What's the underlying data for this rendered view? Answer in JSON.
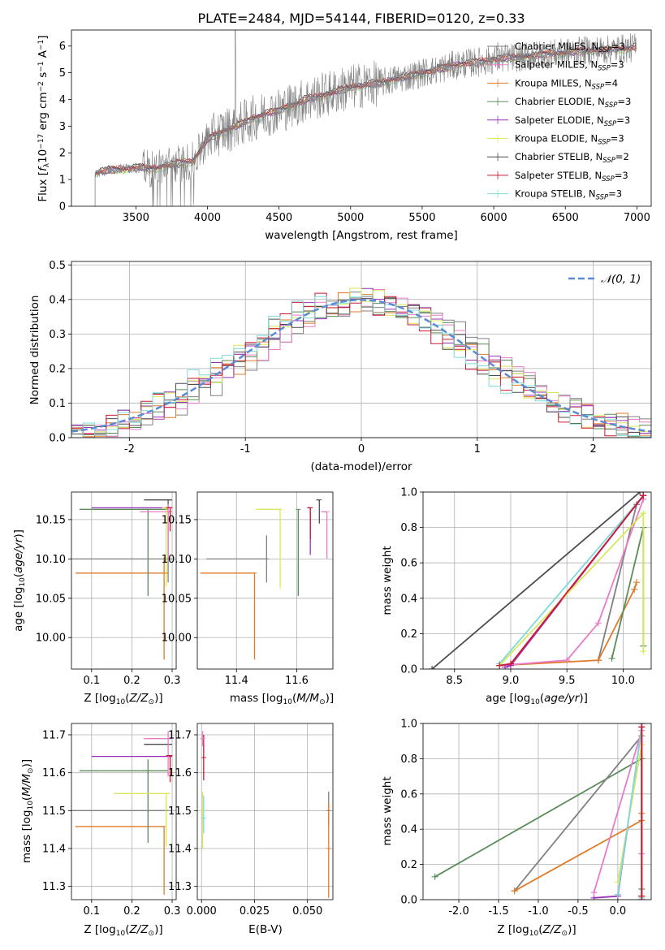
{
  "colors": {
    "Chabrier MILES": "#808080",
    "Salpeter MILES": "#e87cc8",
    "Kroupa MILES": "#e07b2a",
    "Chabrier ELODIE": "#5a8c5a",
    "Salpeter ELODIE": "#9933bb",
    "Kroupa ELODIE": "#d8e85a",
    "Chabrier STELIB": "#4d4d4d",
    "Salpeter STELIB": "#cc1a33",
    "Kroupa STELIB": "#7fd9d9",
    "normal": "#5b8bd6"
  },
  "chart_data": [
    {
      "id": "spectrum",
      "type": "line",
      "title": "PLATE=2484, MJD=54144, FIBERID=0120, z=0.33",
      "xlabel": "wavelength [Angstrom, rest frame]",
      "ylabel": "Flux [f_λ 10^-17 erg cm^-2 s^-1 A^-1]",
      "xlim": [
        3050,
        7100
      ],
      "ylim": [
        0,
        6.6
      ],
      "xticks": [
        3500,
        4000,
        4500,
        5000,
        5500,
        6000,
        6500,
        7000
      ],
      "yticks": [
        0,
        1,
        2,
        3,
        4,
        5,
        6
      ],
      "grid": false,
      "legend_position": "upper right",
      "legend": [
        {
          "label": "Chabrier MILES, N",
          "sub": "SSP",
          "value": "=3",
          "color": "#808080"
        },
        {
          "label": "Salpeter MILES, N",
          "sub": "SSP",
          "value": "=3",
          "color": "#e87cc8"
        },
        {
          "label": "Kroupa MILES, N",
          "sub": "SSP",
          "value": "=4",
          "color": "#e07b2a"
        },
        {
          "label": "Chabrier ELODIE, N",
          "sub": "SSP",
          "value": "=3",
          "color": "#5a8c5a"
        },
        {
          "label": "Salpeter ELODIE, N",
          "sub": "SSP",
          "value": "=3",
          "color": "#9933bb"
        },
        {
          "label": "Kroupa ELODIE, N",
          "sub": "SSP",
          "value": "=3",
          "color": "#d8e85a"
        },
        {
          "label": "Chabrier STELIB, N",
          "sub": "SSP",
          "value": "=2",
          "color": "#4d4d4d"
        },
        {
          "label": "Salpeter STELIB, N",
          "sub": "SSP",
          "value": "=3",
          "color": "#cc1a33"
        },
        {
          "label": "Kroupa STELIB, N",
          "sub": "SSP",
          "value": "=3",
          "color": "#7fd9d9"
        }
      ],
      "continuum": {
        "x": [
          3200,
          3300,
          3400,
          3500,
          3600,
          3700,
          3800,
          3900,
          4000,
          4100,
          4200,
          4300,
          4400,
          4500,
          4600,
          4700,
          4800,
          4900,
          5000,
          5100,
          5200,
          5300,
          5400,
          5500,
          5600,
          5700,
          5800,
          5900,
          6000,
          6100,
          6200,
          6300,
          6400,
          6500,
          6600,
          6700,
          6800,
          6900,
          7000
        ],
        "y": [
          1.2,
          1.35,
          1.4,
          1.45,
          1.4,
          1.5,
          1.6,
          1.7,
          2.5,
          2.8,
          3.0,
          3.25,
          3.45,
          3.6,
          3.8,
          4.0,
          4.15,
          4.3,
          4.45,
          4.55,
          4.6,
          4.75,
          4.85,
          5.0,
          5.1,
          5.25,
          5.35,
          5.4,
          5.5,
          5.55,
          5.6,
          5.65,
          5.7,
          5.75,
          5.8,
          5.85,
          5.85,
          5.9,
          5.95
        ]
      }
    },
    {
      "id": "residuals",
      "type": "histogram",
      "xlabel": "(data-model)/error",
      "ylabel": "Normed distribution",
      "xlim": [
        -2.5,
        2.5
      ],
      "ylim": [
        0,
        0.51
      ],
      "xticks": [
        -2,
        -1,
        0,
        1,
        2
      ],
      "yticks": [
        0.0,
        0.1,
        0.2,
        0.3,
        0.4,
        0.5
      ],
      "grid": true,
      "legend_position": "upper right",
      "curve_label": "𝒩(0, 1)",
      "curve": "normal pdf, mu=0, sigma=1"
    },
    {
      "id": "age_vs_Z",
      "type": "scatter",
      "xlabel": "Z [log10(Z/Z⊙)]",
      "ylabel": "age  [log10(age/yr)]",
      "xlim": [
        0.05,
        0.31
      ],
      "ylim": [
        9.96,
        10.185
      ],
      "xticks": [
        0.1,
        0.2,
        0.3
      ],
      "yticks": [
        10.0,
        10.05,
        10.1,
        10.15
      ],
      "grid": true,
      "points": [
        {
          "model": "Kroupa MILES",
          "x": 0.28,
          "y": 10.082,
          "xerr": [
            0.22,
            0.01
          ],
          "yerr": [
            0.11,
            0.02
          ]
        },
        {
          "model": "Chabrier MILES",
          "x": 0.29,
          "y": 10.1,
          "xerr": [
            0.24,
            0.01
          ],
          "yerr": [
            0.03,
            0.06
          ]
        },
        {
          "model": "Chabrier ELODIE",
          "x": 0.24,
          "y": 10.163,
          "xerr": [
            0.17,
            0.05
          ],
          "yerr": [
            0.11,
            0.0
          ]
        },
        {
          "model": "Salpeter ELODIE",
          "x": 0.29,
          "y": 10.165,
          "xerr": [
            0.19,
            0.01
          ],
          "yerr": [
            0.0,
            0.0
          ]
        },
        {
          "model": "Chabrier STELIB",
          "x": 0.29,
          "y": 10.175,
          "xerr": [
            0.06,
            0.01
          ],
          "yerr": [
            0.01,
            0.0
          ]
        },
        {
          "model": "Salpeter MILES",
          "x": 0.29,
          "y": 10.16,
          "xerr": [
            0.07,
            0.01
          ],
          "yerr": [
            0.06,
            0.01
          ]
        },
        {
          "model": "Kroupa ELODIE",
          "x": 0.285,
          "y": 10.165,
          "xerr": [
            0.01,
            0.01
          ],
          "yerr": [
            0.1,
            0.0
          ]
        },
        {
          "model": "Salpeter STELIB",
          "x": 0.295,
          "y": 10.165,
          "xerr": [
            0.01,
            0.005
          ],
          "yerr": [
            0.03,
            0.0
          ]
        }
      ]
    },
    {
      "id": "age_vs_mass",
      "type": "scatter",
      "xlabel": "mass [log10(M/M⊙)]",
      "xlim": [
        11.27,
        11.72
      ],
      "ylim": [
        9.96,
        10.185
      ],
      "xticks": [
        11.4,
        11.6
      ],
      "yticks": [
        10.0,
        10.05,
        10.1,
        10.15
      ],
      "grid": true,
      "points": [
        {
          "model": "Kroupa MILES",
          "x": 11.46,
          "y": 10.082,
          "xerr": [
            0.18,
            0.0
          ],
          "yerr": [
            0.11,
            0.0
          ]
        },
        {
          "model": "Chabrier MILES",
          "x": 11.5,
          "y": 10.1,
          "xerr": [
            0.2,
            0.0
          ],
          "yerr": [
            0.03,
            0.03
          ]
        },
        {
          "model": "Kroupa ELODIE",
          "x": 11.545,
          "y": 10.163,
          "xerr": [
            0.08,
            0.0
          ],
          "yerr": [
            0.1,
            0.0
          ]
        },
        {
          "model": "Chabrier ELODIE",
          "x": 11.605,
          "y": 10.163,
          "xerr": [
            0.0,
            0.0
          ],
          "yerr": [
            0.11,
            0.0
          ]
        },
        {
          "model": "Salpeter ELODIE",
          "x": 11.645,
          "y": 10.165,
          "xerr": [
            0.01,
            0.0
          ],
          "yerr": [
            0.06,
            0.0
          ]
        },
        {
          "model": "Salpeter STELIB",
          "x": 11.645,
          "y": 10.165,
          "xerr": [
            0.01,
            0.0
          ],
          "yerr": [
            0.04,
            0.0
          ]
        },
        {
          "model": "Chabrier STELIB",
          "x": 11.675,
          "y": 10.175,
          "xerr": [
            0.01,
            0.0
          ],
          "yerr": [
            0.03,
            0.0
          ]
        },
        {
          "model": "Salpeter MILES",
          "x": 11.7,
          "y": 10.16,
          "xerr": [
            0.02,
            0.0
          ],
          "yerr": [
            0.06,
            0.0
          ]
        }
      ]
    },
    {
      "id": "massweight_vs_age",
      "type": "line",
      "xlabel": "age  [log10(age/yr)]",
      "ylabel": "mass weight",
      "xlim": [
        8.22,
        10.25
      ],
      "ylim": [
        0,
        1.0
      ],
      "xticks": [
        8.5,
        9.0,
        9.5,
        10.0
      ],
      "yticks": [
        0.0,
        0.2,
        0.4,
        0.6,
        0.8,
        1.0
      ],
      "grid": true,
      "series": [
        {
          "model": "Chabrier STELIB",
          "x": [
            8.3,
            10.15
          ],
          "y": [
            0.0,
            1.0
          ]
        },
        {
          "model": "Kroupa STELIB",
          "x": [
            8.9,
            10.18
          ],
          "y": [
            0.03,
            0.98
          ]
        },
        {
          "model": "Chabrier MILES",
          "x": [
            9.78,
            10.12,
            10.18
          ],
          "y": [
            0.05,
            0.93,
            0.98
          ]
        },
        {
          "model": "Kroupa MILES",
          "x": [
            8.9,
            9.78,
            10.1,
            10.12
          ],
          "y": [
            0.02,
            0.05,
            0.45,
            0.49
          ]
        },
        {
          "model": "Salpeter MILES",
          "x": [
            8.9,
            9.5,
            9.78,
            10.18
          ],
          "y": [
            0.02,
            0.05,
            0.26,
            0.96
          ]
        },
        {
          "model": "Chabrier ELODIE",
          "x": [
            9.9,
            10.18,
            10.18
          ],
          "y": [
            0.06,
            0.8,
            0.13
          ]
        },
        {
          "model": "Salpeter ELODIE",
          "x": [
            8.95,
            9.0,
            10.18
          ],
          "y": [
            0.01,
            0.02,
            0.98
          ]
        },
        {
          "model": "Kroupa ELODIE",
          "x": [
            8.9,
            10.18,
            10.18
          ],
          "y": [
            0.02,
            0.88,
            0.1
          ]
        },
        {
          "model": "Salpeter STELIB",
          "x": [
            8.9,
            9.0,
            10.18
          ],
          "y": [
            0.02,
            0.03,
            0.98
          ]
        }
      ]
    },
    {
      "id": "mass_vs_Z",
      "type": "scatter",
      "xlabel": "Z [log10(Z/Z⊙)]",
      "ylabel": "mass [log10(M/M⊙)]",
      "xlim": [
        0.05,
        0.31
      ],
      "ylim": [
        11.265,
        11.73
      ],
      "xticks": [
        0.1,
        0.2,
        0.3
      ],
      "yticks": [
        11.3,
        11.4,
        11.5,
        11.6,
        11.7
      ],
      "grid": true,
      "points": [
        {
          "model": "Kroupa MILES",
          "x": 0.28,
          "y": 11.458,
          "xerr": [
            0.22,
            0.0
          ],
          "yerr": [
            0.18,
            0.0
          ]
        },
        {
          "model": "Chabrier MILES",
          "x": 0.29,
          "y": 11.5,
          "xerr": [
            0.24,
            0.0
          ],
          "yerr": [
            0.0,
            0.0
          ]
        },
        {
          "model": "Chabrier ELODIE",
          "x": 0.24,
          "y": 11.605,
          "xerr": [
            0.17,
            0.05
          ],
          "yerr": [
            0.19,
            0.03
          ]
        },
        {
          "model": "Salpeter ELODIE",
          "x": 0.29,
          "y": 11.643,
          "xerr": [
            0.19,
            0.01
          ],
          "yerr": [
            0.0,
            0.0
          ]
        },
        {
          "model": "Kroupa ELODIE",
          "x": 0.285,
          "y": 11.545,
          "xerr": [
            0.13,
            0.01
          ],
          "yerr": [
            0.14,
            0.0
          ]
        },
        {
          "model": "Chabrier STELIB",
          "x": 0.29,
          "y": 11.675,
          "xerr": [
            0.06,
            0.01
          ],
          "yerr": [
            0.0,
            0.0
          ]
        },
        {
          "model": "Salpeter MILES",
          "x": 0.29,
          "y": 11.69,
          "xerr": [
            0.06,
            0.01
          ],
          "yerr": [
            0.1,
            0.02
          ]
        },
        {
          "model": "Salpeter STELIB",
          "x": 0.295,
          "y": 11.645,
          "xerr": [
            0.01,
            0.005
          ],
          "yerr": [
            0.07,
            0.0
          ]
        }
      ]
    },
    {
      "id": "mass_vs_ebv",
      "type": "scatter",
      "xlabel": "E(B-V)",
      "xlim": [
        -0.002,
        0.062
      ],
      "ylim": [
        11.265,
        11.73
      ],
      "xticks": [
        0.0,
        0.025,
        0.05
      ],
      "xticklabels": [
        "0.000",
        "0.025",
        "0.050"
      ],
      "yticks": [
        11.3,
        11.4,
        11.5,
        11.6,
        11.7
      ],
      "grid": true,
      "points": [
        {
          "model": "Salpeter STELIB",
          "x": 0.001,
          "y": 11.64,
          "yerr": [
            0.06,
            0.06
          ]
        },
        {
          "model": "Salpeter MILES",
          "x": 0.0005,
          "y": 11.69,
          "yerr": [
            0.02,
            0.02
          ]
        },
        {
          "model": "Kroupa ELODIE",
          "x": 0.0005,
          "y": 11.5,
          "yerr": [
            0.1,
            0.05
          ]
        },
        {
          "model": "Kroupa STELIB",
          "x": 0.001,
          "y": 11.48,
          "yerr": [
            0.04,
            0.06
          ]
        },
        {
          "model": "Chabrier MILES",
          "x": 0.06,
          "y": 11.5,
          "yerr": [
            0.04,
            0.05
          ]
        },
        {
          "model": "Kroupa MILES",
          "x": 0.06,
          "y": 11.4,
          "yerr": [
            0.13,
            0.12
          ]
        }
      ]
    },
    {
      "id": "massweight_vs_Z",
      "type": "line",
      "xlabel": "Z [log10(Z/Z⊙)]",
      "ylabel": "mass weight",
      "xlim": [
        -2.45,
        0.42
      ],
      "ylim": [
        0,
        1.0
      ],
      "xticks": [
        -2.0,
        -1.5,
        -1.0,
        -0.5,
        0.0
      ],
      "yticks": [
        0.0,
        0.2,
        0.4,
        0.6,
        0.8,
        1.0
      ],
      "grid": true,
      "series": [
        {
          "model": "Chabrier ELODIE",
          "x": [
            -2.3,
            0.3,
            0.3
          ],
          "y": [
            0.13,
            0.8,
            0.06
          ]
        },
        {
          "model": "Chabrier MILES",
          "x": [
            -1.3,
            0.3,
            0.3
          ],
          "y": [
            0.05,
            0.93,
            0.02
          ]
        },
        {
          "model": "Kroupa MILES",
          "x": [
            -1.3,
            0.3,
            0.3,
            0.3
          ],
          "y": [
            0.05,
            0.45,
            0.49,
            0.02
          ]
        },
        {
          "model": "Salpeter ELODIE",
          "x": [
            -0.3,
            0.0,
            0.3
          ],
          "y": [
            0.01,
            0.02,
            0.98
          ]
        },
        {
          "model": "Salpeter MILES",
          "x": [
            -0.3,
            0.3,
            0.3
          ],
          "y": [
            0.04,
            0.96,
            0.26
          ]
        },
        {
          "model": "Kroupa ELODIE",
          "x": [
            0.0,
            0.3,
            0.3
          ],
          "y": [
            0.1,
            0.88,
            0.02
          ]
        },
        {
          "model": "Kroupa STELIB",
          "x": [
            0.0,
            0.3,
            0.3
          ],
          "y": [
            0.03,
            0.98,
            0.01
          ]
        },
        {
          "model": "Chabrier STELIB",
          "x": [
            0.3,
            0.3
          ],
          "y": [
            0.0,
            1.0
          ]
        },
        {
          "model": "Salpeter STELIB",
          "x": [
            0.3,
            0.3
          ],
          "y": [
            0.02,
            0.98
          ]
        }
      ]
    }
  ]
}
